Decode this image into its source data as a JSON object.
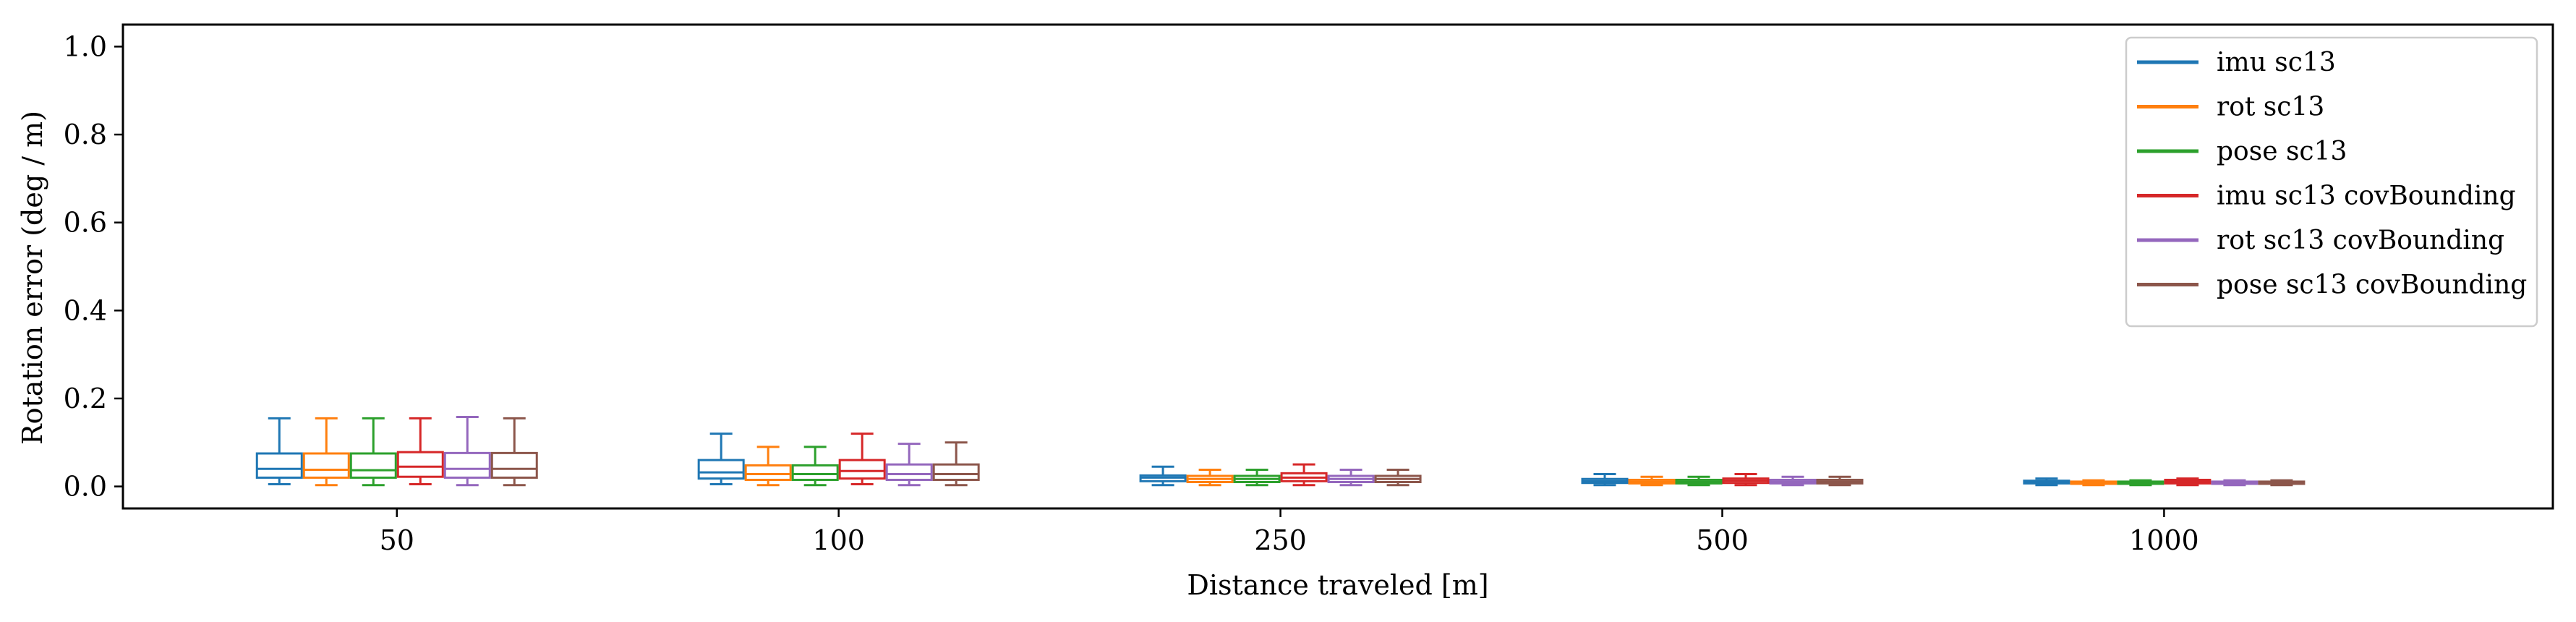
{
  "chart_data": {
    "type": "box",
    "xlabel": "Distance traveled [m]",
    "ylabel": "Rotation error (deg / m)",
    "ylim": [
      -0.05,
      1.05
    ],
    "yticks": [
      0.0,
      0.2,
      0.4,
      0.6,
      0.8,
      1.0
    ],
    "ytick_labels": [
      "0.0",
      "0.2",
      "0.4",
      "0.6",
      "0.8",
      "1.0"
    ],
    "categories": [
      "50",
      "100",
      "250",
      "500",
      "1000"
    ],
    "grid": false,
    "legend_position": "top-right",
    "series": [
      {
        "name": "imu sc13",
        "color": "#1f77b4",
        "boxes": [
          {
            "whislo": 0.005,
            "q1": 0.02,
            "med": 0.04,
            "q3": 0.075,
            "whishi": 0.155
          },
          {
            "whislo": 0.005,
            "q1": 0.018,
            "med": 0.032,
            "q3": 0.06,
            "whishi": 0.12
          },
          {
            "whislo": 0.003,
            "q1": 0.012,
            "med": 0.02,
            "q3": 0.025,
            "whishi": 0.045
          },
          {
            "whislo": 0.003,
            "q1": 0.008,
            "med": 0.012,
            "q3": 0.017,
            "whishi": 0.028
          },
          {
            "whislo": 0.003,
            "q1": 0.007,
            "med": 0.01,
            "q3": 0.013,
            "whishi": 0.018
          }
        ]
      },
      {
        "name": "rot sc13",
        "color": "#ff7f0e",
        "boxes": [
          {
            "whislo": 0.003,
            "q1": 0.02,
            "med": 0.038,
            "q3": 0.075,
            "whishi": 0.155
          },
          {
            "whislo": 0.003,
            "q1": 0.015,
            "med": 0.028,
            "q3": 0.048,
            "whishi": 0.09
          },
          {
            "whislo": 0.003,
            "q1": 0.01,
            "med": 0.017,
            "q3": 0.024,
            "whishi": 0.038
          },
          {
            "whislo": 0.003,
            "q1": 0.007,
            "med": 0.01,
            "q3": 0.015,
            "whishi": 0.022
          },
          {
            "whislo": 0.003,
            "q1": 0.006,
            "med": 0.008,
            "q3": 0.011,
            "whishi": 0.014
          }
        ]
      },
      {
        "name": "pose sc13",
        "color": "#2ca02c",
        "boxes": [
          {
            "whislo": 0.003,
            "q1": 0.02,
            "med": 0.037,
            "q3": 0.075,
            "whishi": 0.155
          },
          {
            "whislo": 0.003,
            "q1": 0.015,
            "med": 0.028,
            "q3": 0.048,
            "whishi": 0.09
          },
          {
            "whislo": 0.003,
            "q1": 0.01,
            "med": 0.017,
            "q3": 0.024,
            "whishi": 0.038
          },
          {
            "whislo": 0.003,
            "q1": 0.007,
            "med": 0.01,
            "q3": 0.015,
            "whishi": 0.022
          },
          {
            "whislo": 0.003,
            "q1": 0.006,
            "med": 0.008,
            "q3": 0.011,
            "whishi": 0.014
          }
        ]
      },
      {
        "name": "imu sc13 covBounding",
        "color": "#d62728",
        "boxes": [
          {
            "whislo": 0.005,
            "q1": 0.022,
            "med": 0.045,
            "q3": 0.078,
            "whishi": 0.155
          },
          {
            "whislo": 0.005,
            "q1": 0.018,
            "med": 0.035,
            "q3": 0.06,
            "whishi": 0.12
          },
          {
            "whislo": 0.003,
            "q1": 0.012,
            "med": 0.02,
            "q3": 0.03,
            "whishi": 0.05
          },
          {
            "whislo": 0.003,
            "q1": 0.008,
            "med": 0.013,
            "q3": 0.018,
            "whishi": 0.028
          },
          {
            "whislo": 0.003,
            "q1": 0.007,
            "med": 0.011,
            "q3": 0.015,
            "whishi": 0.018
          }
        ]
      },
      {
        "name": "rot sc13 covBounding",
        "color": "#9467bd",
        "boxes": [
          {
            "whislo": 0.003,
            "q1": 0.02,
            "med": 0.04,
            "q3": 0.076,
            "whishi": 0.158
          },
          {
            "whislo": 0.003,
            "q1": 0.015,
            "med": 0.028,
            "q3": 0.05,
            "whishi": 0.097
          },
          {
            "whislo": 0.003,
            "q1": 0.01,
            "med": 0.017,
            "q3": 0.024,
            "whishi": 0.038
          },
          {
            "whislo": 0.003,
            "q1": 0.007,
            "med": 0.01,
            "q3": 0.015,
            "whishi": 0.022
          },
          {
            "whislo": 0.003,
            "q1": 0.006,
            "med": 0.008,
            "q3": 0.011,
            "whishi": 0.014
          }
        ]
      },
      {
        "name": "pose sc13 covBounding",
        "color": "#8c564b",
        "boxes": [
          {
            "whislo": 0.003,
            "q1": 0.02,
            "med": 0.04,
            "q3": 0.076,
            "whishi": 0.155
          },
          {
            "whislo": 0.003,
            "q1": 0.015,
            "med": 0.028,
            "q3": 0.05,
            "whishi": 0.1
          },
          {
            "whislo": 0.003,
            "q1": 0.01,
            "med": 0.017,
            "q3": 0.024,
            "whishi": 0.038
          },
          {
            "whislo": 0.003,
            "q1": 0.007,
            "med": 0.01,
            "q3": 0.015,
            "whishi": 0.022
          },
          {
            "whislo": 0.003,
            "q1": 0.006,
            "med": 0.008,
            "q3": 0.011,
            "whishi": 0.014
          }
        ]
      }
    ]
  }
}
